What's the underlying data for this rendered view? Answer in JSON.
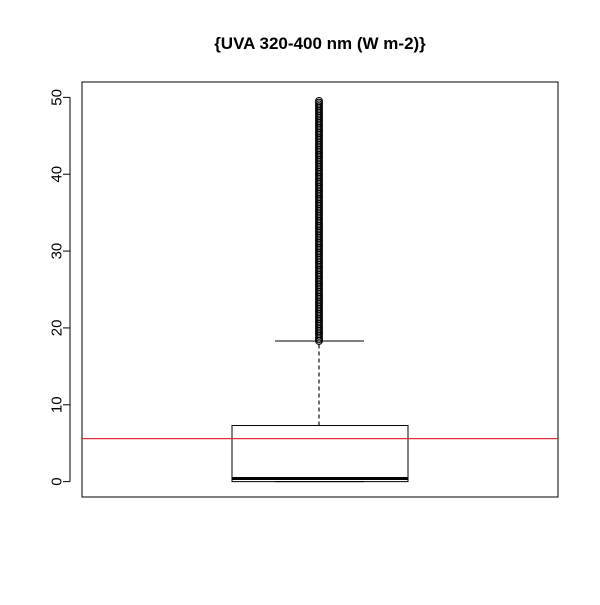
{
  "chart_data": {
    "type": "boxplot",
    "title": "{UVA 320-400 nm (W m-2)}",
    "xlabel": "",
    "ylabel": "",
    "ylim": [
      -2,
      52
    ],
    "yticks": [
      0,
      10,
      20,
      30,
      40,
      50
    ],
    "ytick_labels": [
      "0",
      "10",
      "20",
      "30",
      "40",
      "50"
    ],
    "box": {
      "whisker_low": 0,
      "q1": 0,
      "median": 0.4,
      "q3": 7.3,
      "whisker_high": 18.3
    },
    "outliers_range": [
      18.3,
      49.7
    ],
    "mean_line": {
      "value": 5.6,
      "color": "#e0323c"
    },
    "grid": false,
    "legend": "none"
  }
}
